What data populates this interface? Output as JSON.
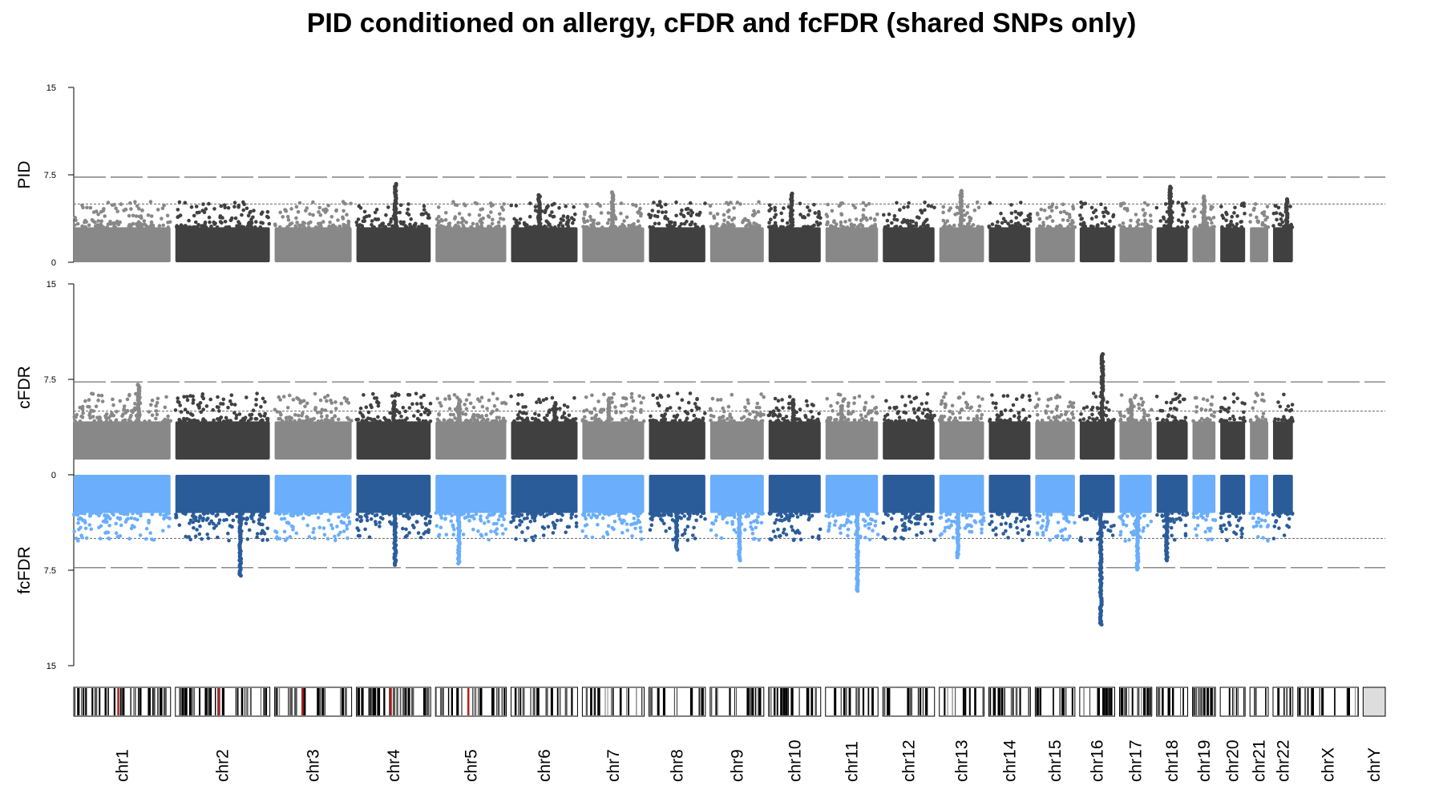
{
  "chart_data": {
    "type": "scatter",
    "title": "PID conditioned on allergy, cFDR and fcFDR (shared SNPs only)",
    "panels": [
      {
        "name": "PID",
        "ylabel": "PID",
        "ylim": [
          0,
          15
        ],
        "ticks": [
          "0",
          "7.5",
          "15"
        ],
        "direction": "up",
        "significance_line": 7.3,
        "suggestive_line": 5,
        "base": 0,
        "colors": [
          "#888888",
          "#404040"
        ]
      },
      {
        "name": "cFDR",
        "ylabel": "cFDR",
        "ylim": [
          0,
          15
        ],
        "ticks": [
          "0",
          "7.5",
          "15"
        ],
        "direction": "up",
        "significance_line": 7.3,
        "suggestive_line": 5,
        "base": 1.2,
        "colors": [
          "#888888",
          "#404040"
        ]
      },
      {
        "name": "fcFDR",
        "ylabel": "fcFDR",
        "ylim": [
          0,
          15
        ],
        "ticks": [
          "0",
          "7.5",
          "15"
        ],
        "direction": "down",
        "significance_line": 7.3,
        "suggestive_line": 5,
        "base": 0,
        "colors": [
          "#6aaefc",
          "#2b5c9a"
        ]
      }
    ],
    "chromosomes": [
      "chr1",
      "chr2",
      "chr3",
      "chr4",
      "chr5",
      "chr6",
      "chr7",
      "chr8",
      "chr9",
      "chr10",
      "chr11",
      "chr12",
      "chr13",
      "chr14",
      "chr15",
      "chr16",
      "chr17",
      "chr18",
      "chr19",
      "chr20",
      "chr21",
      "chr22",
      "chrX",
      "chrY"
    ],
    "chromosome_lengths_mb": [
      249,
      243,
      198,
      191,
      182,
      171,
      159,
      145,
      138,
      134,
      135,
      133,
      115,
      107,
      102,
      90,
      83,
      80,
      59,
      64,
      47,
      51,
      156,
      57
    ],
    "has_data": [
      true,
      true,
      true,
      true,
      true,
      true,
      true,
      true,
      true,
      true,
      true,
      true,
      true,
      true,
      true,
      true,
      true,
      true,
      true,
      true,
      true,
      true,
      false,
      false
    ],
    "peaks": {
      "PID": [
        [
          4,
          6.8
        ],
        [
          6,
          5.8
        ],
        [
          7,
          6.1
        ],
        [
          13,
          6.2
        ],
        [
          18,
          6.5
        ],
        [
          19,
          5.7
        ],
        [
          10,
          6.0
        ],
        [
          22,
          5.5
        ]
      ],
      "cFDR": [
        [
          16,
          9.5
        ],
        [
          1,
          7.2
        ],
        [
          4,
          5.8
        ],
        [
          5,
          6.0
        ],
        [
          6,
          5.7
        ],
        [
          7,
          6.1
        ],
        [
          17,
          6.0
        ],
        [
          11,
          5.5
        ],
        [
          10,
          6.0
        ]
      ],
      "fcFDR": [
        [
          2,
          8.0
        ],
        [
          16,
          11.8
        ],
        [
          11,
          9.2
        ],
        [
          17,
          7.5
        ],
        [
          5,
          7.0
        ],
        [
          4,
          7.1
        ],
        [
          9,
          6.8
        ],
        [
          13,
          6.6
        ],
        [
          18,
          6.8
        ],
        [
          8,
          6.0
        ]
      ]
    },
    "legend": "none",
    "grid": false
  }
}
